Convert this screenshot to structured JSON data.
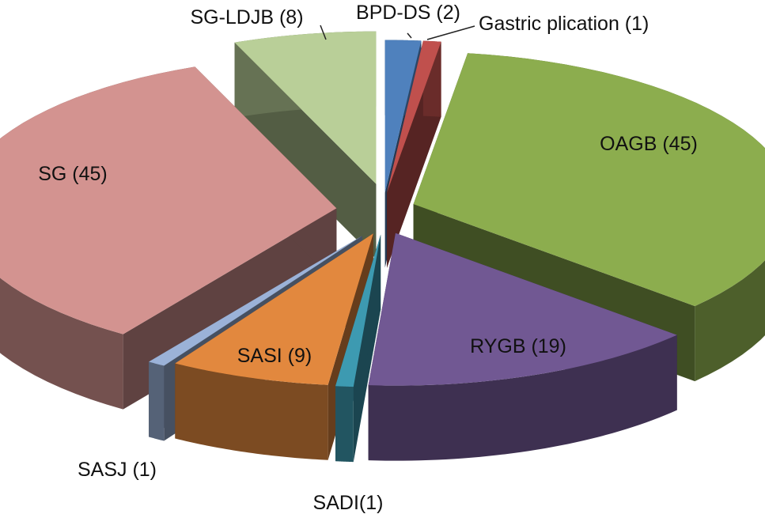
{
  "chart_data": {
    "type": "pie",
    "title": "",
    "style": "3d-exploded",
    "slices": [
      {
        "label": "BPD-DS (2)",
        "name": "BPD-DS",
        "value": 2,
        "color": "#4f81bd"
      },
      {
        "label": "Gastric plication (1)",
        "name": "Gastric plication",
        "value": 1,
        "color": "#c0504d"
      },
      {
        "label": "OAGB (45)",
        "name": "OAGB",
        "value": 45,
        "color": "#8cad4e"
      },
      {
        "label": "RYGB (19)",
        "name": "RYGB",
        "value": 19,
        "color": "#715893"
      },
      {
        "label": "SADI(1)",
        "name": "SADI",
        "value": 1,
        "color": "#3d9ab1"
      },
      {
        "label": "SASI (9)",
        "name": "SASI",
        "value": 9,
        "color": "#e2883e"
      },
      {
        "label": "SASJ (1)",
        "name": "SASJ",
        "value": 1,
        "color": "#9bb2d8"
      },
      {
        "label": "SG (45)",
        "name": "SG",
        "value": 45,
        "color": "#d39390"
      },
      {
        "label": "SG-LDJB (8)",
        "name": "SG-LDJB",
        "value": 8,
        "color": "#b9cf98"
      }
    ]
  }
}
